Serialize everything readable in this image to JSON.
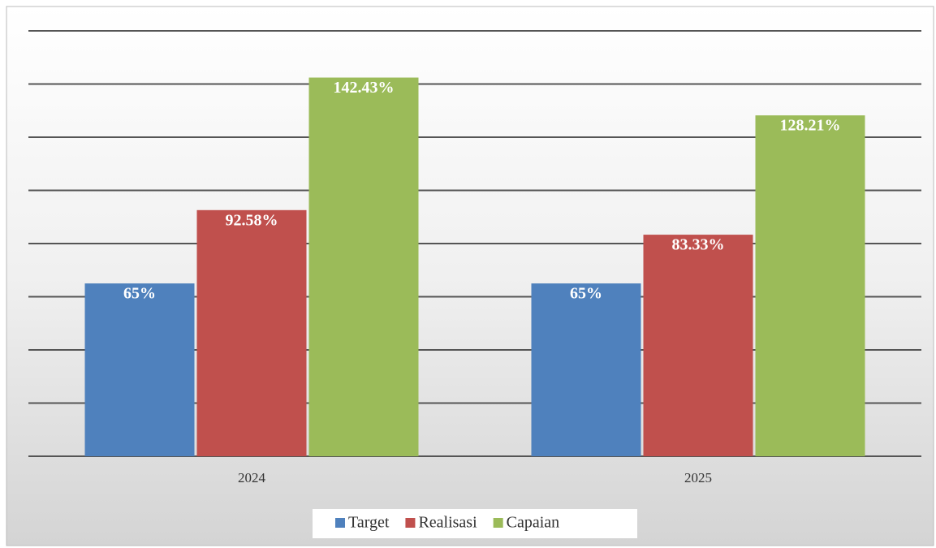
{
  "chart_data": {
    "type": "bar",
    "categories": [
      "2024",
      "2025"
    ],
    "series": [
      {
        "name": "Target",
        "color": "#4f81bd",
        "values": [
          65,
          65
        ],
        "value_labels": [
          "65%",
          "65%"
        ]
      },
      {
        "name": "Realisasi",
        "color": "#c0504d",
        "values": [
          92.58,
          83.33
        ],
        "value_labels": [
          "92.58%",
          "83.33%"
        ]
      },
      {
        "name": "Capaian",
        "color": "#9bbb59",
        "values": [
          142.43,
          128.21
        ],
        "value_labels": [
          "142.43%",
          "128.21%"
        ]
      }
    ],
    "ylim": [
      0,
      160
    ],
    "yticks": [
      0,
      20,
      40,
      60,
      80,
      100,
      120,
      140,
      160
    ],
    "grid": true,
    "legend": "bottom"
  }
}
